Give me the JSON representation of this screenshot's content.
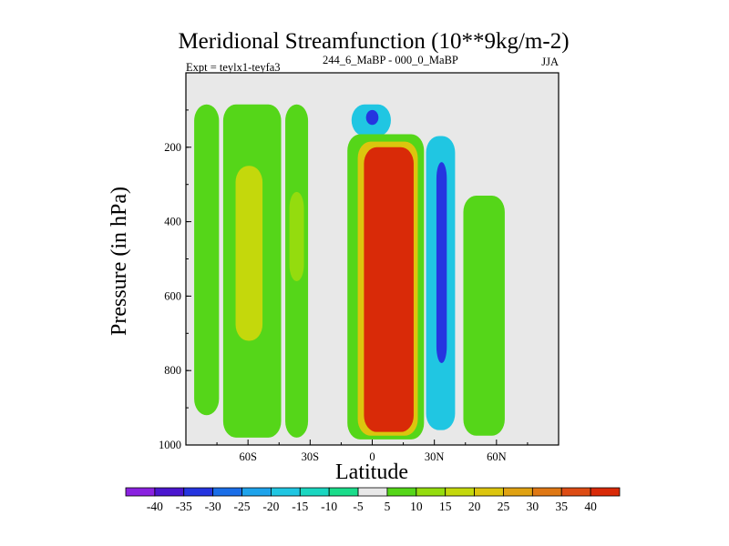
{
  "chart_data": {
    "type": "contour",
    "title": "Meridional Streamfunction (10**9kg/m-2)",
    "subtitle_left": "Expt = teylx1-teyfa3",
    "subtitle_super": "244_6_MaBP - 000_0_MaBP",
    "subtitle_right": "JJA",
    "xlabel": "Latitude",
    "ylabel": "Pressure (in hPa)",
    "xlim": [
      -90,
      90
    ],
    "ylim": [
      1000,
      0
    ],
    "x_ticks": [
      {
        "value": -60,
        "label": "60S"
      },
      {
        "value": -30,
        "label": "30S"
      },
      {
        "value": 0,
        "label": "0"
      },
      {
        "value": 30,
        "label": "30N"
      },
      {
        "value": 60,
        "label": "60N"
      }
    ],
    "y_ticks": [
      {
        "value": 200,
        "label": "200"
      },
      {
        "value": 400,
        "label": "400"
      },
      {
        "value": 600,
        "label": "600"
      },
      {
        "value": 800,
        "label": "800"
      },
      {
        "value": 1000,
        "label": "1000"
      }
    ],
    "colorbar": {
      "labels": [
        "-40",
        "-35",
        "-30",
        "-25",
        "-20",
        "-15",
        "-10",
        "-5",
        "5",
        "10",
        "15",
        "20",
        "25",
        "30",
        "35",
        "40"
      ],
      "colors": [
        "#8a22e0",
        "#4b16cf",
        "#2535e0",
        "#1a6ee8",
        "#1ea3eb",
        "#20c6e2",
        "#1ad6c0",
        "#1adc8a",
        "#e8e8e8",
        "#55d619",
        "#94dc0e",
        "#c4d80c",
        "#dcc50e",
        "#e0a212",
        "#df7814",
        "#dd4c14",
        "#d92a08"
      ]
    },
    "background_color": "#e8e8e8",
    "regions": [
      {
        "name": "sh-polar-band",
        "color": "#55d619",
        "lat_lo": -86,
        "lat_hi": -74,
        "p_top": 85,
        "p_bot": 920
      },
      {
        "name": "sh-midlat-band",
        "color": "#55d619",
        "lat_lo": -72,
        "lat_hi": -44,
        "p_top": 85,
        "p_bot": 980
      },
      {
        "name": "sh-midlat-core",
        "color": "#c4d80c",
        "lat_lo": -66,
        "lat_hi": -53,
        "p_top": 250,
        "p_bot": 720
      },
      {
        "name": "sh-subtrop-band",
        "color": "#55d619",
        "lat_lo": -42,
        "lat_hi": -31,
        "p_top": 85,
        "p_bot": 980
      },
      {
        "name": "sh-subtrop-core",
        "color": "#94dc0e",
        "lat_lo": -40,
        "lat_hi": -33,
        "p_top": 320,
        "p_bot": 560
      },
      {
        "name": "tropical-upper-negative",
        "color": "#20c6e2",
        "lat_lo": -10,
        "lat_hi": 9,
        "p_top": 85,
        "p_bot": 170
      },
      {
        "name": "tropical-upper-min",
        "color": "#2535e0",
        "lat_lo": -3,
        "lat_hi": 3,
        "p_top": 100,
        "p_bot": 140
      },
      {
        "name": "hadley-outer",
        "color": "#55d619",
        "lat_lo": -12,
        "lat_hi": 25,
        "p_top": 165,
        "p_bot": 985
      },
      {
        "name": "hadley-mid",
        "color": "#dcc50e",
        "lat_lo": -7,
        "lat_hi": 22,
        "p_top": 185,
        "p_bot": 975
      },
      {
        "name": "hadley-core",
        "color": "#d92a08",
        "lat_lo": -4,
        "lat_hi": 20,
        "p_top": 200,
        "p_bot": 965
      },
      {
        "name": "nh-negative-cell",
        "color": "#20c6e2",
        "lat_lo": 26,
        "lat_hi": 40,
        "p_top": 170,
        "p_bot": 960
      },
      {
        "name": "nh-negative-core",
        "color": "#2535e0",
        "lat_lo": 31,
        "lat_hi": 36,
        "p_top": 240,
        "p_bot": 780
      },
      {
        "name": "nh-subpolar-band",
        "color": "#55d619",
        "lat_lo": 44,
        "lat_hi": 64,
        "p_top": 330,
        "p_bot": 975
      }
    ]
  }
}
